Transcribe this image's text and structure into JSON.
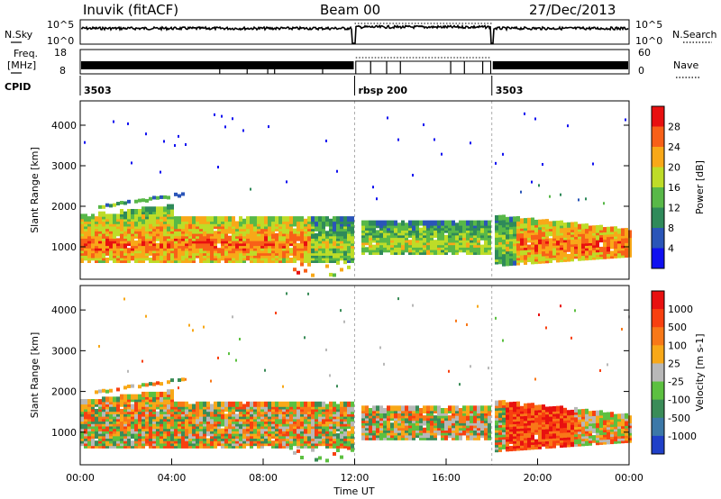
{
  "header": {
    "station": "Inuvik (fitACF)",
    "beam": "Beam 00",
    "date": "27/Dec/2013"
  },
  "top_panel": {
    "left_label": "N.Sky",
    "left_top_tick": "10^5",
    "left_bottom_tick": "10^0",
    "right_label": "N.Search",
    "right_top_tick": "10^5",
    "right_bottom_tick": "10^0"
  },
  "freq_panel": {
    "left_label_1": "Freq.",
    "left_label_2": "[MHz]",
    "left_top_tick": "18",
    "left_bottom_tick": "8",
    "right_label": "Nave",
    "right_top_tick": "60",
    "right_bottom_tick": "0"
  },
  "cpid": {
    "label": "CPID",
    "segments": [
      {
        "label": "3503",
        "start": 0,
        "end": 12
      },
      {
        "label": "rbsp 200",
        "start": 12,
        "end": 18
      },
      {
        "label": "3503",
        "start": 18,
        "end": 24
      }
    ]
  },
  "x_axis": {
    "title": "Time UT",
    "ticks": [
      "00:00",
      "04:00",
      "08:00",
      "12:00",
      "16:00",
      "20:00",
      "00:00"
    ],
    "tick_values": [
      0,
      4,
      8,
      12,
      16,
      20,
      24
    ]
  },
  "chart_data": [
    {
      "type": "heatmap",
      "title": "",
      "xlabel": "",
      "ylabel": "Slant Range [km]",
      "xlim": [
        0,
        24
      ],
      "ylim": [
        200,
        4600
      ],
      "y_ticks": [
        "1000",
        "2000",
        "3000",
        "4000"
      ],
      "y_tick_values": [
        1000,
        2000,
        3000,
        4000
      ],
      "colorbar": {
        "label": "Power [dB]",
        "tick_labels": [
          "4",
          "8",
          "12",
          "16",
          "20",
          "24",
          "28"
        ],
        "tick_values": [
          4,
          8,
          12,
          16,
          20,
          24,
          28
        ],
        "range": [
          0,
          32
        ],
        "colors": [
          "#1010f0",
          "#2a55b8",
          "#2f8a5a",
          "#58b848",
          "#bedc28",
          "#f8a818",
          "#f86018",
          "#e81010"
        ]
      }
    },
    {
      "type": "heatmap",
      "title": "",
      "xlabel": "Time UT",
      "ylabel": "Slant Range [km]",
      "xlim": [
        0,
        24
      ],
      "ylim": [
        200,
        4600
      ],
      "y_ticks": [
        "1000",
        "2000",
        "3000",
        "4000"
      ],
      "y_tick_values": [
        1000,
        2000,
        3000,
        4000
      ],
      "colorbar": {
        "label": "Velocity [m s-1]",
        "tick_labels": [
          "1000",
          "500",
          "100",
          "25",
          "-25",
          "-100",
          "-500",
          "-1000"
        ],
        "colors": [
          "#2040c8",
          "#3c78a8",
          "#3a8c58",
          "#5cc040",
          "#b8b8b8",
          "#f8a818",
          "#f87818",
          "#f84010",
          "#e81010"
        ]
      }
    }
  ]
}
